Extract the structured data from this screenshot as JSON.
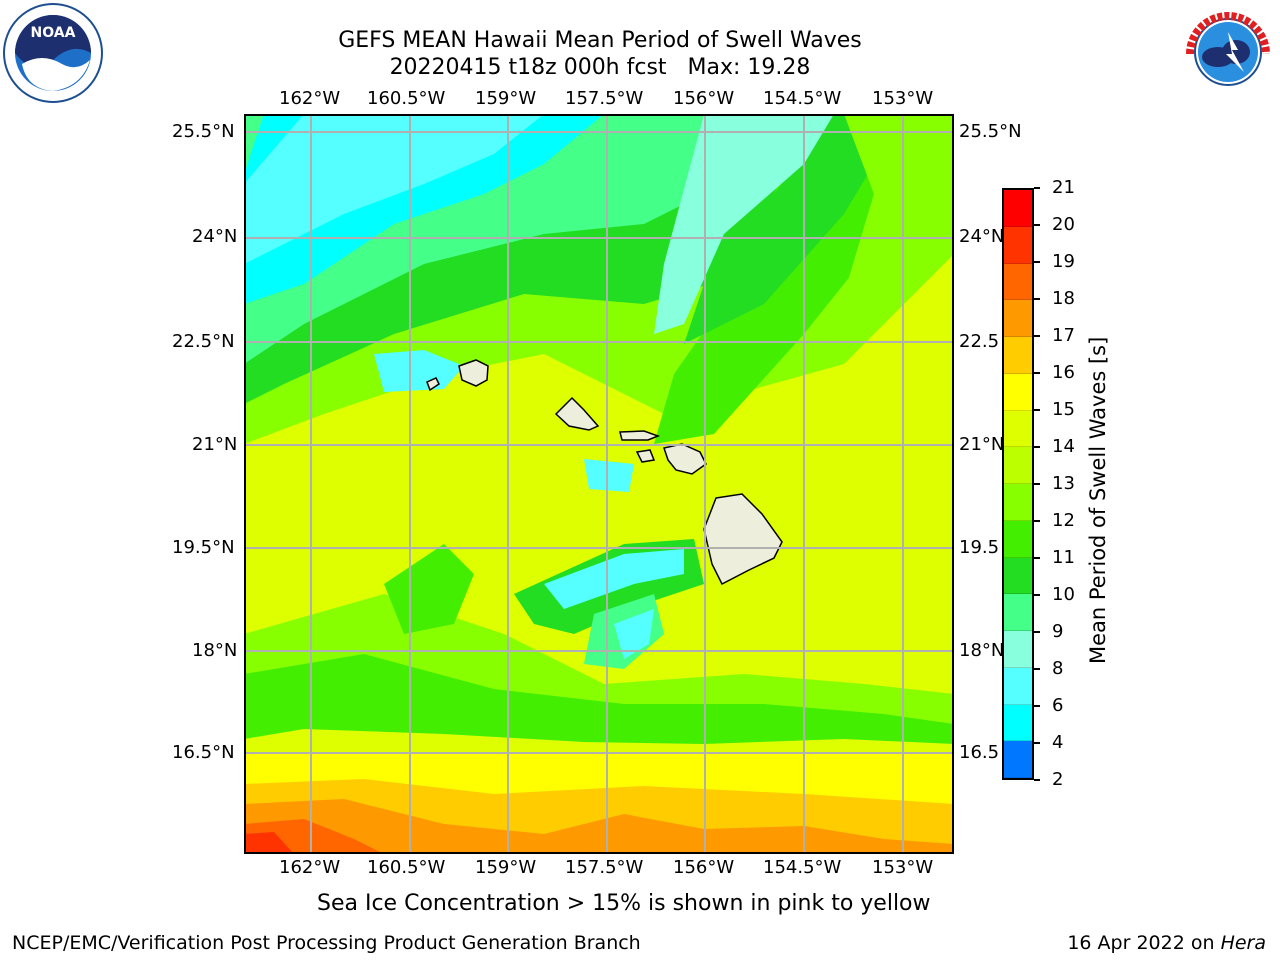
{
  "title": {
    "line1": "GEFS MEAN Hawaii Mean Period of Swell Waves",
    "line2": "20220415 t18z 000h fcst",
    "max_label": "Max: 19.28"
  },
  "lon_labels": [
    "162°W",
    "160.5°W",
    "159°W",
    "157.5°W",
    "156°W",
    "154.5°W",
    "153°W"
  ],
  "lat_labels_left": [
    "25.5°N",
    "24°N",
    "22.5°N",
    "21°N",
    "19.5°N",
    "18°N",
    "16.5°N"
  ],
  "lat_labels_right": [
    "25.5°N",
    "24°N",
    "22.5",
    "21°N",
    "19.5",
    "18°N",
    "16.5"
  ],
  "colorbar": {
    "title": "Mean Period of Swell Waves [s]",
    "ticks": [
      "21",
      "20",
      "19",
      "18",
      "17",
      "16",
      "15",
      "14",
      "13",
      "12",
      "11",
      "10",
      "9",
      "8",
      "6",
      "4",
      "2"
    ],
    "colors": [
      "#ff0000",
      "#ff3300",
      "#ff6600",
      "#ff9900",
      "#ffcc00",
      "#ffff00",
      "#ddff00",
      "#bbff00",
      "#88ff00",
      "#44ee00",
      "#22dd22",
      "#44ff88",
      "#88ffdd",
      "#55ffff",
      "#00ffff",
      "#0077ff",
      "#0000ff"
    ]
  },
  "note": "Sea Ice Concentration > 15% is shown in pink to yellow",
  "footer": {
    "left": "NCEP/EMC/Verification Post Processing Product Generation Branch",
    "right_date": "16 Apr 2022 on",
    "right_host": "Hera"
  },
  "logos": {
    "noaa": "NOAA",
    "nws_top": "NATIONAL WEATHER SERVICE"
  }
}
